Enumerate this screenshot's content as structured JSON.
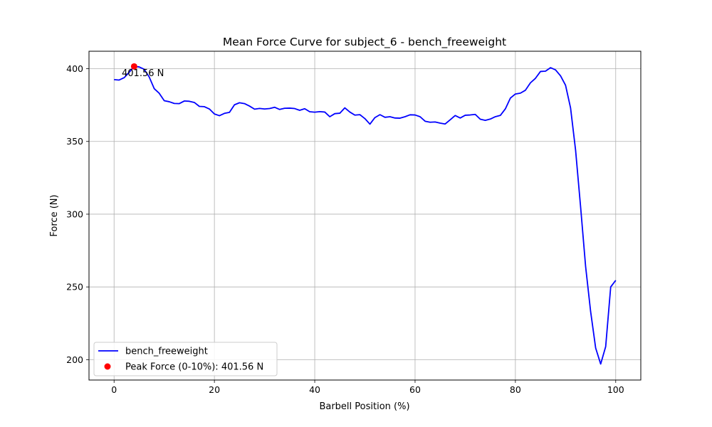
{
  "chart_data": {
    "type": "line",
    "title": "Mean Force Curve for subject_6 - bench_freeweight",
    "xlabel": "Barbell Position (%)",
    "ylabel": "Force (N)",
    "xlim": [
      -5,
      105
    ],
    "ylim": [
      186,
      412
    ],
    "xticks": [
      0,
      20,
      40,
      60,
      80,
      100
    ],
    "yticks": [
      200,
      250,
      300,
      350,
      400
    ],
    "grid": true,
    "legend_position": "lower-left",
    "series": [
      {
        "name": "bench_freeweight",
        "color": "#0000ff",
        "x": [
          0,
          1,
          2,
          3,
          4,
          5,
          6,
          7,
          8,
          9,
          10,
          11,
          12,
          13,
          14,
          15,
          16,
          17,
          18,
          19,
          20,
          21,
          22,
          23,
          24,
          25,
          26,
          27,
          28,
          29,
          30,
          31,
          32,
          33,
          34,
          35,
          36,
          37,
          38,
          39,
          40,
          41,
          42,
          43,
          44,
          45,
          46,
          47,
          48,
          49,
          50,
          51,
          52,
          53,
          54,
          55,
          56,
          57,
          58,
          59,
          60,
          61,
          62,
          63,
          64,
          65,
          66,
          67,
          68,
          69,
          70,
          71,
          72,
          73,
          74,
          75,
          76,
          77,
          78,
          79,
          80,
          81,
          82,
          83,
          84,
          85,
          86,
          87,
          88,
          89,
          90,
          91,
          92,
          93,
          94,
          95,
          96,
          97,
          98,
          99,
          100
        ],
        "y": [
          392.5,
          392.2,
          393.8,
          397.5,
          401.56,
          401.2,
          399.6,
          394.3,
          386.3,
          383.1,
          378.0,
          377.3,
          376.1,
          376.0,
          377.8,
          377.6,
          376.8,
          374.1,
          373.9,
          372.3,
          368.9,
          367.7,
          369.3,
          370.0,
          375.2,
          376.6,
          376.0,
          374.3,
          372.2,
          372.7,
          372.3,
          372.6,
          373.5,
          372.0,
          372.8,
          372.9,
          372.6,
          371.4,
          372.5,
          370.4,
          370.1,
          370.5,
          370.2,
          367.0,
          369.1,
          369.4,
          373.1,
          370.2,
          368.1,
          368.4,
          365.7,
          361.9,
          366.4,
          368.4,
          366.6,
          367.0,
          366.1,
          366.0,
          367.0,
          368.3,
          368.2,
          367.0,
          363.9,
          363.2,
          363.4,
          362.6,
          362.0,
          364.9,
          367.8,
          366.1,
          368.0,
          368.2,
          368.6,
          365.3,
          364.5,
          365.4,
          367.0,
          367.9,
          372.4,
          379.8,
          382.6,
          383.2,
          385.2,
          390.3,
          393.4,
          398.1,
          398.3,
          400.7,
          399.2,
          395.1,
          388.6,
          373.0,
          344.0,
          305.0,
          264.0,
          233.0,
          208.0,
          197.0,
          209.0,
          250.0,
          254.5
        ]
      }
    ],
    "peak": {
      "name": "Peak Force (0-10%): 401.56 N",
      "x": 4,
      "y": 401.56,
      "color": "#ff0000",
      "annotation": "401.56 N"
    }
  }
}
